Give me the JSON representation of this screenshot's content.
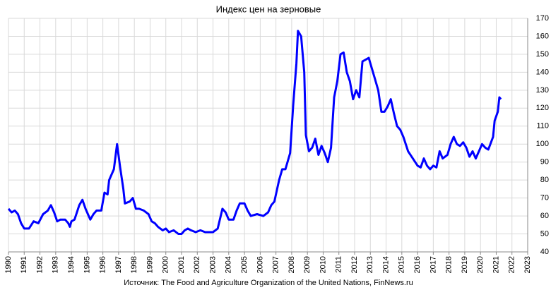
{
  "chart_data": {
    "type": "line",
    "title": "Индекс цен на зерновые",
    "source": "Источник: The Food and Agriculture Organization of the United Nations, FinNews.ru",
    "x": [
      1990.0,
      1990.2,
      1990.4,
      1990.6,
      1990.8,
      1991.0,
      1991.3,
      1991.6,
      1991.9,
      1992.2,
      1992.5,
      1992.7,
      1992.9,
      1993.1,
      1993.3,
      1993.6,
      1993.8,
      1993.9,
      1994.0,
      1994.2,
      1994.5,
      1994.7,
      1994.9,
      1995.2,
      1995.4,
      1995.6,
      1995.9,
      1996.1,
      1996.3,
      1996.4,
      1996.7,
      1996.9,
      1997.1,
      1997.3,
      1997.4,
      1997.7,
      1997.9,
      1998.1,
      1998.3,
      1998.6,
      1998.9,
      1999.1,
      1999.3,
      1999.5,
      1999.8,
      2000.0,
      2000.2,
      2000.5,
      2000.8,
      2001.0,
      2001.2,
      2001.4,
      2001.6,
      2001.9,
      2002.2,
      2002.5,
      2002.8,
      2003.0,
      2003.3,
      2003.6,
      2003.8,
      2004.0,
      2004.3,
      2004.5,
      2004.7,
      2005.0,
      2005.2,
      2005.4,
      2005.8,
      2006.2,
      2006.5,
      2006.7,
      2006.9,
      2007.2,
      2007.4,
      2007.6,
      2007.9,
      2008.1,
      2008.3,
      2008.4,
      2008.6,
      2008.8,
      2008.9,
      2009.1,
      2009.3,
      2009.5,
      2009.7,
      2009.9,
      2010.1,
      2010.3,
      2010.5,
      2010.7,
      2010.9,
      2011.1,
      2011.3,
      2011.5,
      2011.7,
      2011.9,
      2012.1,
      2012.3,
      2012.5,
      2012.7,
      2012.9,
      2013.1,
      2013.3,
      2013.5,
      2013.7,
      2013.9,
      2014.1,
      2014.3,
      2014.5,
      2014.7,
      2014.9,
      2015.1,
      2015.4,
      2015.7,
      2016.0,
      2016.2,
      2016.4,
      2016.6,
      2016.8,
      2017.0,
      2017.2,
      2017.4,
      2017.6,
      2017.9,
      2018.1,
      2018.3,
      2018.5,
      2018.7,
      2018.9,
      2019.1,
      2019.3,
      2019.5,
      2019.7,
      2019.9,
      2020.1,
      2020.3,
      2020.5,
      2020.8,
      2020.9,
      2021.1,
      2021.2,
      2021.3
    ],
    "series": [
      {
        "color": "#0000ff",
        "values": [
          64,
          62,
          63,
          61,
          56,
          53,
          53,
          57,
          56,
          61,
          63,
          66,
          62,
          57,
          58,
          58,
          56,
          54,
          57,
          58,
          66,
          69,
          64,
          58,
          61,
          63,
          63,
          73,
          72,
          80,
          86,
          100,
          87,
          75,
          67,
          68,
          70,
          64,
          64,
          63,
          61,
          57,
          56,
          54,
          52,
          53,
          51,
          52,
          50,
          50,
          52,
          53,
          52,
          51,
          52,
          51,
          51,
          51,
          53,
          64,
          62,
          58,
          58,
          63,
          67,
          67,
          63,
          60,
          61,
          60,
          62,
          66,
          68,
          80,
          86,
          86,
          95,
          122,
          145,
          163,
          160,
          140,
          105,
          96,
          98,
          103,
          94,
          99,
          95,
          90,
          98,
          126,
          135,
          150,
          151,
          140,
          135,
          125,
          130,
          126,
          146,
          147,
          148,
          142,
          136,
          130,
          118,
          118,
          121,
          125,
          117,
          110,
          108,
          104,
          96,
          92,
          88,
          87,
          92,
          88,
          86,
          88,
          87,
          96,
          92,
          94,
          100,
          104,
          100,
          99,
          101,
          98,
          93,
          96,
          92,
          96,
          100,
          98,
          97,
          104,
          113,
          118,
          126,
          125
        ]
      }
    ],
    "xlim": [
      1990,
      2023
    ],
    "xticks": [
      1990,
      1991,
      1992,
      1993,
      1994,
      1995,
      1996,
      1997,
      1998,
      1999,
      2000,
      2001,
      2002,
      2003,
      2004,
      2005,
      2006,
      2007,
      2008,
      2009,
      2010,
      2011,
      2012,
      2013,
      2014,
      2015,
      2016,
      2017,
      2018,
      2019,
      2020,
      2021,
      2022,
      2023
    ],
    "ylim": [
      40,
      170
    ],
    "yticks": [
      40,
      50,
      60,
      70,
      80,
      90,
      100,
      110,
      120,
      130,
      140,
      150,
      160,
      170
    ],
    "grid": true
  }
}
